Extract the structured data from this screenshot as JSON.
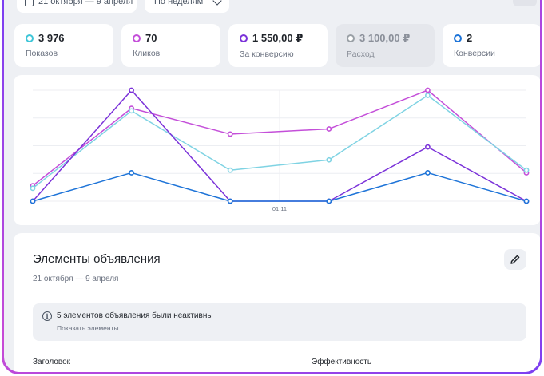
{
  "filters": {
    "date_range": "21 октября — 9 апреля",
    "grouping": "По неделям"
  },
  "metrics": [
    {
      "value": "3 976",
      "label": "Показов",
      "color": "#3ec6d8",
      "muted": false
    },
    {
      "value": "70",
      "label": "Кликов",
      "color": "#c44fd9",
      "muted": false
    },
    {
      "value": "1 550,00 ₽",
      "label": "За конверсию",
      "color": "#7b32d9",
      "muted": false
    },
    {
      "value": "3 100,00 ₽",
      "label": "Расход",
      "color": "#9aa0a6",
      "muted": true
    },
    {
      "value": "2",
      "label": "Конверсии",
      "color": "#1e74d8",
      "muted": false
    }
  ],
  "chart_data": {
    "type": "line",
    "x": [
      "",
      "",
      "01.11",
      "",
      "",
      ""
    ],
    "ylim": [
      0,
      43
    ],
    "y_top_tick": "43",
    "grid": true,
    "series": [
      {
        "color": "#c44fd9",
        "values": [
          6,
          36,
          26,
          28,
          43,
          11
        ]
      },
      {
        "color": "#7fd3e3",
        "values": [
          5,
          35,
          12,
          16,
          41,
          12
        ]
      },
      {
        "color": "#7b32d9",
        "values": [
          0,
          43,
          0,
          0,
          21,
          0
        ]
      },
      {
        "color": "#1e74d8",
        "values": [
          0,
          11,
          0,
          0,
          11,
          0
        ]
      }
    ]
  },
  "elements": {
    "title": "Элементы объявления",
    "subtitle": "21 октября — 9 апреля",
    "notice_text": "5 элементов объявления были неактивны",
    "notice_link": "Показать элементы",
    "column_headline": "Заголовок",
    "column_efficiency": "Эффективность"
  }
}
